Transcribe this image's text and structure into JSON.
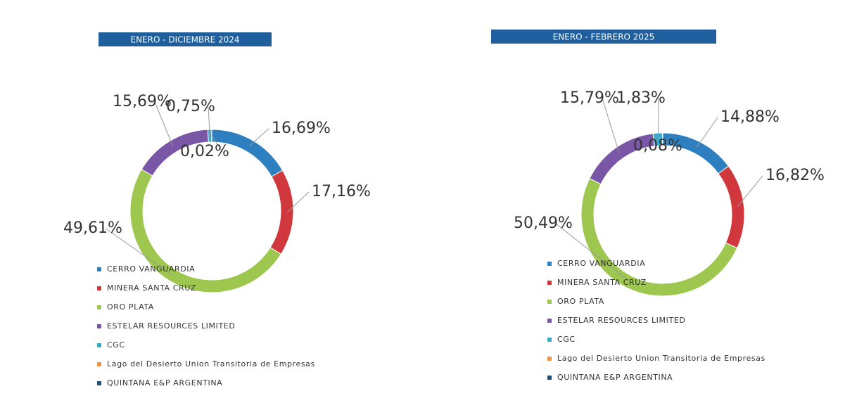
{
  "chart_data": [
    {
      "type": "donut",
      "title": "ENERO - DICIEMBRE 2024",
      "categories": [
        "CERRO VANGUARDIA",
        "MINERA SANTA CRUZ",
        "ORO PLATA",
        "ESTELAR RESOURCES LIMITED",
        "CGC",
        "Lago del Desierto Union Transitoria de Empresas",
        "QUINTANA E&P ARGENTINA"
      ],
      "values": [
        16.69,
        17.16,
        49.61,
        15.69,
        0.75,
        0.02,
        null
      ],
      "value_labels": [
        "16,69%",
        "17,16%",
        "49,61%",
        "15,69%",
        "0,75%",
        "0,02%",
        null
      ],
      "colors": [
        "#2e7fc0",
        "#d0383e",
        "#9dc74e",
        "#7a56a6",
        "#3aa8c8",
        "#f0934a",
        "#1f4e79"
      ]
    },
    {
      "type": "donut",
      "title": "ENERO - FEBRERO 2025",
      "categories": [
        "CERRO VANGUARDIA",
        "MINERA SANTA CRUZ",
        "ORO PLATA",
        "ESTELAR RESOURCES LIMITED",
        "CGC",
        "Lago del Desierto Union Transitoria de Empresas",
        "QUINTANA E&P ARGENTINA"
      ],
      "values": [
        14.88,
        16.82,
        50.49,
        15.79,
        1.83,
        0.08,
        null
      ],
      "value_labels": [
        "14,88%",
        "16,82%",
        "50,49%",
        "15,79%",
        "1,83%",
        "0,08%",
        null
      ],
      "colors": [
        "#2e7fc0",
        "#d0383e",
        "#9dc74e",
        "#7a56a6",
        "#3aa8c8",
        "#f0934a",
        "#1f4e79"
      ]
    }
  ]
}
